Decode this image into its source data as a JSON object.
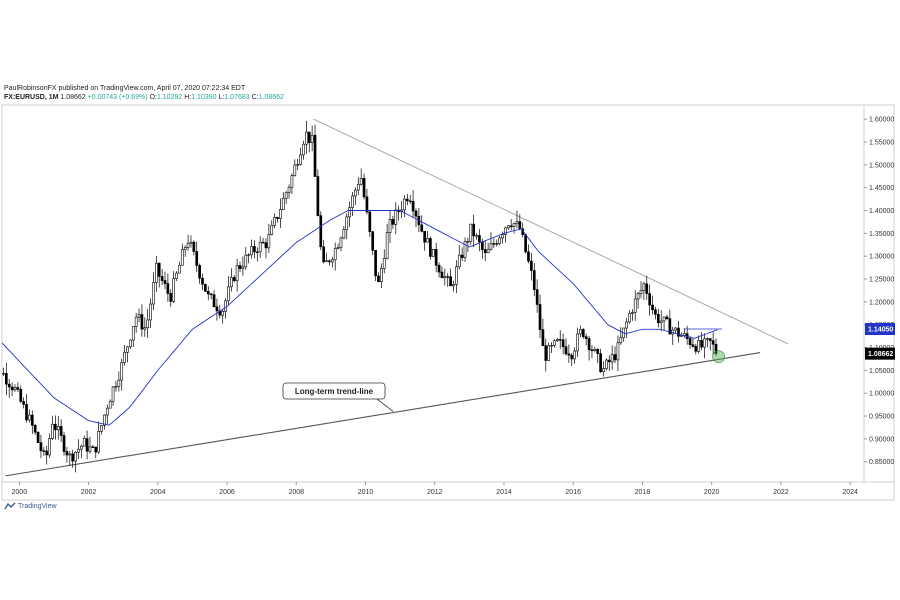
{
  "header": {
    "line1": "PaulRobinsonFX published on TradingView.com, April 07, 2020 07:22:34 EDT",
    "symbol": "FX:EURUSD, 1M",
    "last": "1.08662",
    "change": "+0.00743 (+0.69%)",
    "open_label": "O:",
    "open": "1.10292",
    "high_label": "H:",
    "high": "1.10390",
    "low_label": "L:",
    "low": "1.07683",
    "close_label": "C:",
    "close": "1.08662"
  },
  "brand": {
    "name": "TradingView"
  },
  "colors": {
    "up": "#ffffff",
    "down": "#000000",
    "wick": "#000000",
    "ma": "#2233cc",
    "trend": "#555555",
    "upper": "#aaaaaa",
    "circle": "#4caf50"
  },
  "chart_data": {
    "type": "candlestick",
    "x_unit": "year",
    "xlim": [
      1999.5,
      2024.4
    ],
    "ylim": [
      0.81,
      1.62
    ],
    "x_ticks": [
      "2000",
      "2002",
      "2004",
      "2006",
      "2008",
      "2010",
      "2012",
      "2014",
      "2016",
      "2018",
      "2020",
      "2022",
      "2024"
    ],
    "y_ticks": [
      "0.85000",
      "0.90000",
      "0.95000",
      "1.00000",
      "1.05000",
      "1.10000",
      "1.15000",
      "1.20000",
      "1.25000",
      "1.30000",
      "1.35000",
      "1.40000",
      "1.45000",
      "1.50000",
      "1.55000",
      "1.60000"
    ],
    "price_points": [
      [
        1999.0,
        1.17
      ],
      [
        1999.4,
        1.06
      ],
      [
        1999.9,
        1.01
      ],
      [
        2000.4,
        0.93
      ],
      [
        2000.8,
        0.85
      ],
      [
        2001.0,
        0.94
      ],
      [
        2001.5,
        0.86
      ],
      [
        2001.9,
        0.89
      ],
      [
        2002.2,
        0.87
      ],
      [
        2002.6,
        0.98
      ],
      [
        2003.0,
        1.06
      ],
      [
        2003.4,
        1.17
      ],
      [
        2003.7,
        1.14
      ],
      [
        2004.0,
        1.27
      ],
      [
        2004.4,
        1.21
      ],
      [
        2004.9,
        1.34
      ],
      [
        2005.5,
        1.21
      ],
      [
        2005.9,
        1.18
      ],
      [
        2006.3,
        1.27
      ],
      [
        2006.9,
        1.32
      ],
      [
        2007.2,
        1.33
      ],
      [
        2007.9,
        1.47
      ],
      [
        2008.3,
        1.57
      ],
      [
        2008.5,
        1.55
      ],
      [
        2008.8,
        1.27
      ],
      [
        2009.2,
        1.32
      ],
      [
        2009.9,
        1.48
      ],
      [
        2010.4,
        1.23
      ],
      [
        2010.7,
        1.36
      ],
      [
        2011.3,
        1.44
      ],
      [
        2011.7,
        1.35
      ],
      [
        2012.0,
        1.3
      ],
      [
        2012.5,
        1.23
      ],
      [
        2012.8,
        1.3
      ],
      [
        2013.1,
        1.36
      ],
      [
        2013.5,
        1.3
      ],
      [
        2014.2,
        1.38
      ],
      [
        2014.5,
        1.36
      ],
      [
        2014.9,
        1.24
      ],
      [
        2015.2,
        1.08
      ],
      [
        2015.6,
        1.11
      ],
      [
        2016.0,
        1.09
      ],
      [
        2016.3,
        1.14
      ],
      [
        2016.9,
        1.05
      ],
      [
        2017.3,
        1.09
      ],
      [
        2017.7,
        1.18
      ],
      [
        2018.1,
        1.24
      ],
      [
        2018.4,
        1.17
      ],
      [
        2018.9,
        1.14
      ],
      [
        2019.3,
        1.12
      ],
      [
        2019.7,
        1.1
      ],
      [
        2020.0,
        1.11
      ],
      [
        2020.2,
        1.09
      ]
    ],
    "moving_average": [
      [
        1999.0,
        1.15
      ],
      [
        2000.0,
        1.07
      ],
      [
        2001.0,
        0.99
      ],
      [
        2002.0,
        0.94
      ],
      [
        2002.6,
        0.93
      ],
      [
        2003.2,
        0.97
      ],
      [
        2004.0,
        1.05
      ],
      [
        2005.0,
        1.14
      ],
      [
        2006.0,
        1.19
      ],
      [
        2007.0,
        1.26
      ],
      [
        2008.0,
        1.33
      ],
      [
        2009.0,
        1.38
      ],
      [
        2009.5,
        1.4
      ],
      [
        2010.0,
        1.4
      ],
      [
        2011.0,
        1.4
      ],
      [
        2012.0,
        1.36
      ],
      [
        2013.0,
        1.32
      ],
      [
        2014.0,
        1.35
      ],
      [
        2014.5,
        1.36
      ],
      [
        2015.0,
        1.31
      ],
      [
        2016.0,
        1.24
      ],
      [
        2017.0,
        1.15
      ],
      [
        2017.5,
        1.13
      ],
      [
        2018.0,
        1.14
      ],
      [
        2018.5,
        1.14
      ],
      [
        2019.0,
        1.13
      ],
      [
        2019.5,
        1.12
      ],
      [
        2020.2,
        1.14
      ]
    ],
    "ma_current_label": "1.14050",
    "last_price_label": "1.08662",
    "support_trendline": [
      [
        1999.6,
        0.819
      ],
      [
        2021.4,
        1.089
      ]
    ],
    "resistance_trendline": [
      [
        2008.5,
        1.6
      ],
      [
        2022.2,
        1.108
      ]
    ],
    "annotation": {
      "text": "Long-term trend-line",
      "target": [
        2010.8,
        0.96
      ]
    },
    "highlight_circle": [
      2020.2,
      1.08
    ]
  }
}
